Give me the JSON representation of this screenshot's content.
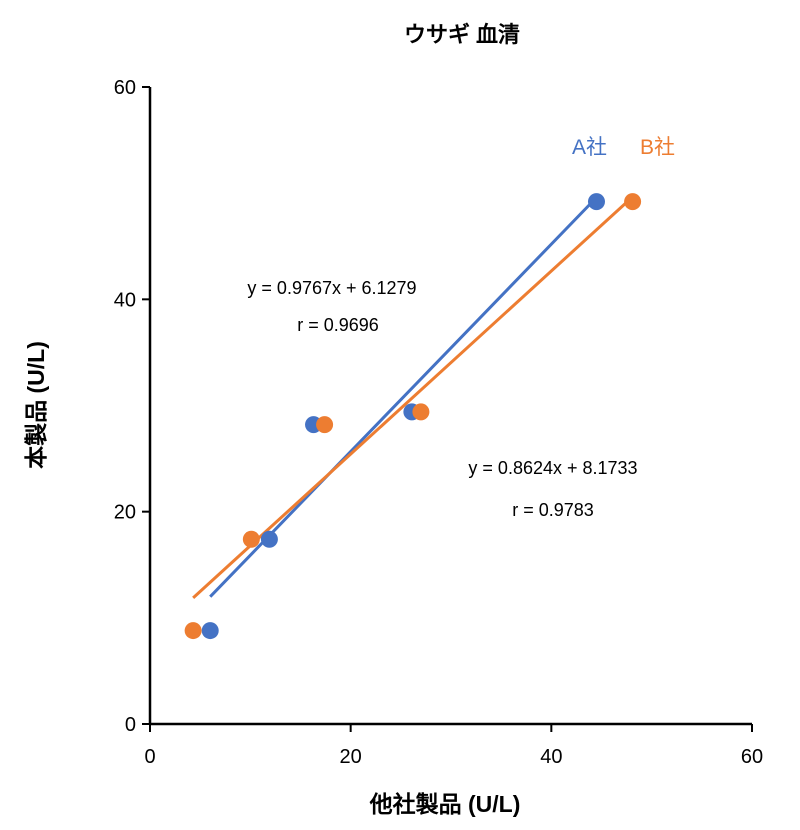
{
  "chart_data": {
    "type": "scatter",
    "title": "ウサギ 血清",
    "xlabel": "他社製品 (U/L)",
    "ylabel": "本製品 (U/L)",
    "xlim": [
      0,
      60
    ],
    "ylim": [
      0,
      60
    ],
    "xticks": [
      0,
      20,
      40,
      60
    ],
    "yticks": [
      0,
      20,
      40,
      60
    ],
    "grid": false,
    "legend_placement": "top-right",
    "series": [
      {
        "name": "A社",
        "color": "#4472C4",
        "x": [
          6.0,
          11.9,
          16.3,
          26.1,
          44.5
        ],
        "y": [
          8.8,
          17.4,
          28.2,
          29.4,
          49.2
        ],
        "trendline": {
          "slope": 0.9767,
          "intercept": 6.1279,
          "x_range": [
            6.0,
            44.5
          ]
        },
        "equation": "y = 0.9767x + 6.1279",
        "r": "r = 0.9696"
      },
      {
        "name": "B社",
        "color": "#ED7D31",
        "x": [
          4.3,
          10.1,
          17.4,
          27.0,
          48.1
        ],
        "y": [
          8.8,
          17.4,
          28.2,
          29.4,
          49.2
        ],
        "trendline": {
          "slope": 0.8624,
          "intercept": 8.1733,
          "x_range": [
            4.3,
            48.1
          ]
        },
        "equation": "y = 0.8624x + 8.1733",
        "r": "r = 0.9783"
      }
    ]
  }
}
